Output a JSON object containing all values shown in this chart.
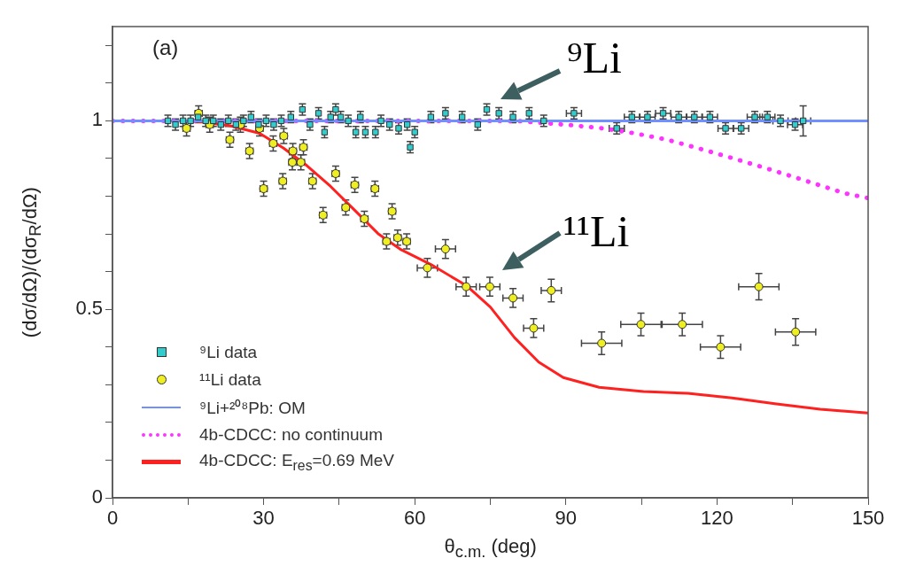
{
  "chart_data": {
    "type": "scatter",
    "title": "(a)",
    "xlabel": "θ$_{c.m.}$ (deg)",
    "ylabel": "(dσ/dΩ)/(dσ$_{R}$/dΩ)",
    "xlim": [
      0,
      150
    ],
    "xticks": [
      0,
      {
        "value": 15,
        "label": null
      },
      30,
      {
        "value": 45,
        "label": null
      },
      60,
      {
        "value": 75,
        "label": null
      },
      90,
      {
        "value": 105,
        "label": null
      },
      120,
      {
        "value": 135,
        "label": null
      },
      150
    ],
    "ylim": [
      0,
      1.25
    ],
    "yticks": [
      0,
      {
        "value": 0.1,
        "label": null
      },
      {
        "value": 0.2,
        "label": null
      },
      {
        "value": 0.3,
        "label": null
      },
      {
        "value": 0.4,
        "label": null
      },
      0.5,
      {
        "value": 0.6,
        "label": null
      },
      {
        "value": 0.7,
        "label": null
      },
      {
        "value": 0.8,
        "label": null
      },
      {
        "value": 0.9,
        "label": null
      },
      1,
      {
        "value": 1.1,
        "label": null
      },
      {
        "value": 1.2,
        "label": null
      }
    ],
    "legend": "bottom left",
    "annotations": [
      "⁹Li",
      "¹¹Li"
    ],
    "series": [
      {
        "name": "⁹Li data",
        "marker": "square",
        "color": "#33cccc",
        "x": [
          11,
          12.5,
          14,
          15.5,
          17,
          18.5,
          20,
          21.5,
          23,
          24.5,
          26,
          27.5,
          29,
          30.5,
          32,
          33.5,
          35.4,
          37.7,
          39.2,
          40.9,
          42.1,
          43.3,
          44.3,
          45.3,
          46.8,
          48.3,
          49.2,
          50.2,
          52.2,
          53.3,
          55,
          56.8,
          58.5,
          59.1,
          60,
          63.2,
          66.1,
          69.4,
          72.5,
          74.3,
          76.7,
          79.5,
          82.7,
          85.6,
          91.6,
          100.1,
          103.1,
          106.2,
          109.3,
          112.4,
          115.5,
          118.6,
          121.7,
          124.8,
          127.5,
          130,
          132.6,
          135.5,
          137.1
        ],
        "values": [
          1,
          0.99,
          1,
          1,
          1.01,
          1,
          1,
          0.99,
          1,
          0.99,
          1,
          1.01,
          0.99,
          1,
          0.99,
          1,
          1.01,
          1.03,
          0.99,
          1.02,
          0.97,
          1.01,
          1.03,
          1.01,
          1,
          0.97,
          1.01,
          0.97,
          0.97,
          1,
          0.99,
          0.98,
          0.99,
          0.93,
          0.97,
          1.01,
          1.02,
          1.01,
          0.99,
          1.03,
          1.02,
          1.01,
          1.02,
          1,
          1.02,
          0.98,
          1.01,
          1.01,
          1.02,
          1.01,
          1.01,
          1.01,
          0.98,
          0.98,
          1.01,
          1.01,
          1,
          0.99,
          1
        ],
        "errors": [
          0.015,
          0.015,
          0.015,
          0.015,
          0.015,
          0.015,
          0.015,
          0.015,
          0.015,
          0.015,
          0.015,
          0.015,
          0.015,
          0.015,
          0.015,
          0.015,
          0.015,
          0.015,
          0.015,
          0.015,
          0.015,
          0.015,
          0.015,
          0.015,
          0.015,
          0.015,
          0.015,
          0.015,
          0.015,
          0.015,
          0.015,
          0.015,
          0.015,
          0.015,
          0.015,
          0.015,
          0.015,
          0.015,
          0.015,
          0.015,
          0.015,
          0.015,
          0.015,
          0.015,
          0.015,
          0.015,
          0.015,
          0.015,
          0.015,
          0.015,
          0.015,
          0.015,
          0.015,
          0.015,
          0.015,
          0.015,
          0.015,
          0.015,
          0.04
        ],
        "xerrors": [
          null,
          null,
          null,
          null,
          null,
          null,
          null,
          null,
          null,
          null,
          null,
          null,
          null,
          null,
          null,
          null,
          null,
          null,
          null,
          null,
          null,
          null,
          null,
          null,
          null,
          null,
          null,
          null,
          null,
          null,
          null,
          null,
          null,
          null,
          null,
          null,
          null,
          null,
          null,
          null,
          null,
          null,
          null,
          null,
          1.5,
          1.5,
          1.5,
          1.5,
          1.5,
          1.5,
          1.5,
          1.5,
          1.5,
          1.5,
          1.5,
          1.5,
          1.5,
          1.5,
          1.5
        ]
      },
      {
        "name": "¹¹Li data",
        "marker": "circle",
        "color": "#eeee22",
        "x": [
          14.7,
          17.1,
          19.3,
          23.3,
          25.4,
          27.2,
          29.2,
          30,
          31.9,
          33.8,
          34,
          35.7,
          35.8,
          37.4,
          37.9,
          39.7,
          41.8,
          44.3,
          46.3,
          48.1,
          50,
          52.1,
          54.4,
          55.5,
          56.6,
          58.4,
          62.5,
          66.1,
          70.2,
          74.9,
          79.5,
          83.6,
          87.1,
          97.1,
          104.9,
          113.1,
          120.7,
          128.3,
          135.6
        ],
        "values": [
          0.98,
          1.02,
          0.99,
          0.95,
          0.99,
          0.92,
          0.98,
          0.82,
          0.94,
          0.84,
          0.96,
          0.89,
          0.92,
          0.89,
          0.93,
          0.84,
          0.75,
          0.86,
          0.77,
          0.83,
          0.74,
          0.82,
          0.68,
          0.76,
          0.69,
          0.68,
          0.61,
          0.66,
          0.56,
          0.56,
          0.53,
          0.45,
          0.55,
          0.41,
          0.46,
          0.46,
          0.4,
          0.56,
          0.44
        ],
        "errors": [
          0.02,
          0.02,
          0.02,
          0.02,
          0.02,
          0.02,
          0.02,
          0.02,
          0.02,
          0.02,
          0.02,
          0.02,
          0.02,
          0.02,
          0.02,
          0.02,
          0.02,
          0.02,
          0.02,
          0.02,
          0.02,
          0.02,
          0.02,
          0.02,
          0.02,
          0.02,
          0.025,
          0.025,
          0.025,
          0.025,
          0.025,
          0.025,
          0.03,
          0.03,
          0.03,
          0.03,
          0.03,
          0.035,
          0.035
        ],
        "xerrors": [
          0.7,
          0.7,
          0.7,
          0.7,
          0.7,
          0.7,
          0.7,
          0.7,
          0.7,
          0.7,
          0.7,
          0.7,
          0.7,
          0.7,
          0.7,
          0.7,
          0.7,
          0.7,
          0.7,
          0.7,
          0.7,
          0.7,
          0.7,
          0.7,
          0.7,
          0.7,
          2,
          2,
          2,
          2,
          2,
          2,
          2,
          4,
          4,
          4,
          4,
          4,
          4
        ]
      },
      {
        "name": "⁹Li+²⁰⁸Pb: OM",
        "type": "line",
        "line_style": "solid",
        "color": "#7090ff",
        "x": [
          0,
          150
        ],
        "values": [
          1,
          1
        ]
      },
      {
        "name": "4b-CDCC: no continuum",
        "type": "line",
        "line_style": "dotted",
        "color": "#ff33ff",
        "x": [
          0,
          80,
          90.6,
          97.5,
          103.6,
          110.1,
          116.6,
          122.8,
          129.3,
          135.5,
          145.3,
          150
        ],
        "values": [
          1,
          1,
          0.989,
          0.98,
          0.967,
          0.95,
          0.926,
          0.902,
          0.876,
          0.85,
          0.808,
          0.795
        ]
      },
      {
        "name": "4b-CDCC: E$_{res}$=0.69 MeV",
        "type": "line",
        "line_style": "solid",
        "color": "#ff2020",
        "x": [
          0,
          16.3,
          23.4,
          29.2,
          33.9,
          38.6,
          43.3,
          48,
          52.7,
          57.3,
          63.2,
          69.1,
          70.7,
          75,
          79.8,
          84.6,
          89.5,
          96.6,
          105.4,
          114.2,
          123,
          131.8,
          140.5,
          150
        ],
        "values": [
          1,
          1,
          0.987,
          0.967,
          0.928,
          0.881,
          0.826,
          0.764,
          0.701,
          0.658,
          0.619,
          0.572,
          0.558,
          0.506,
          0.425,
          0.36,
          0.319,
          0.293,
          0.282,
          0.277,
          0.265,
          0.249,
          0.235,
          0.225
        ]
      }
    ]
  }
}
